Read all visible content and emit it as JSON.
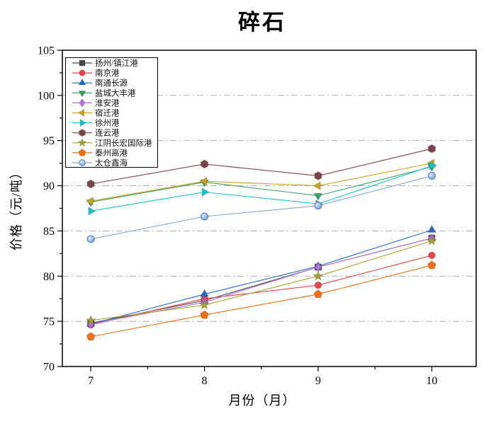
{
  "title": "碎石",
  "axes": {
    "xlabel": "月份（月）",
    "ylabel": "价格（元/吨）",
    "x_ticks": [
      "7",
      "8",
      "9",
      "10"
    ],
    "y_ticks": [
      "70",
      "75",
      "80",
      "85",
      "90",
      "95",
      "100",
      "105"
    ]
  },
  "chart_data": {
    "type": "line",
    "title": "碎石",
    "xlabel": "月份（月）",
    "ylabel": "价格（元/吨）",
    "x": [
      7,
      8,
      9,
      10
    ],
    "x_range": [
      6.75,
      10.39
    ],
    "y_range": [
      70,
      105
    ],
    "x_major_ticks": [
      7,
      8,
      9,
      10
    ],
    "x_minor_ticks": [
      7.5,
      8.5,
      9.5
    ],
    "y_major_ticks": [
      70,
      75,
      80,
      85,
      90,
      95,
      100,
      105
    ],
    "y_minor_step": 2.5,
    "grid": "horizontal dash-dot gridlines at major y ticks",
    "legend_position": "upper-left",
    "series": [
      {
        "name": "扬州/镇江港",
        "marker": "square",
        "color": "#4a4a4a",
        "values": [
          74.8,
          77.3,
          81.0,
          84.2
        ]
      },
      {
        "name": "南京港",
        "marker": "circle",
        "color": "#e8434e",
        "values": [
          74.6,
          77.5,
          79.0,
          82.3
        ]
      },
      {
        "name": "南通长源",
        "marker": "triangle-up",
        "color": "#2369cb",
        "values": [
          74.7,
          78.0,
          81.1,
          85.1
        ]
      },
      {
        "name": "盐城大丰港",
        "marker": "triangle-down",
        "color": "#35a063",
        "values": [
          88.2,
          90.4,
          88.9,
          92.1
        ]
      },
      {
        "name": "淮安港",
        "marker": "diamond",
        "color": "#b472d8",
        "values": [
          74.7,
          77.1,
          81.0,
          84.2
        ]
      },
      {
        "name": "宿迁港",
        "marker": "triangle-left",
        "color": "#c9a21d",
        "values": [
          88.3,
          90.5,
          90.0,
          92.5
        ]
      },
      {
        "name": "徐州港",
        "marker": "triangle-right",
        "color": "#16c2cf",
        "values": [
          87.2,
          89.3,
          88.0,
          92.2
        ]
      },
      {
        "name": "连云港",
        "marker": "hexagon",
        "color": "#7d4348",
        "values": [
          90.2,
          92.4,
          91.1,
          94.1
        ]
      },
      {
        "name": "江阴长宏国际港",
        "marker": "star",
        "color": "#a4a42c",
        "values": [
          75.1,
          76.8,
          80.0,
          83.9
        ]
      },
      {
        "name": "泰州高港",
        "marker": "pentagon",
        "color": "#f36f13",
        "values": [
          73.3,
          75.7,
          78.0,
          81.2
        ]
      },
      {
        "name": "太仓鑫海",
        "marker": "sphere",
        "color": "#84a8dc",
        "sphere_edge": "#4d7fc0",
        "values": [
          84.1,
          86.6,
          87.8,
          91.1
        ]
      }
    ]
  },
  "style": {
    "frame_color": "#000000",
    "grid_color": "#a0a0a0",
    "background": "#ffffff"
  }
}
